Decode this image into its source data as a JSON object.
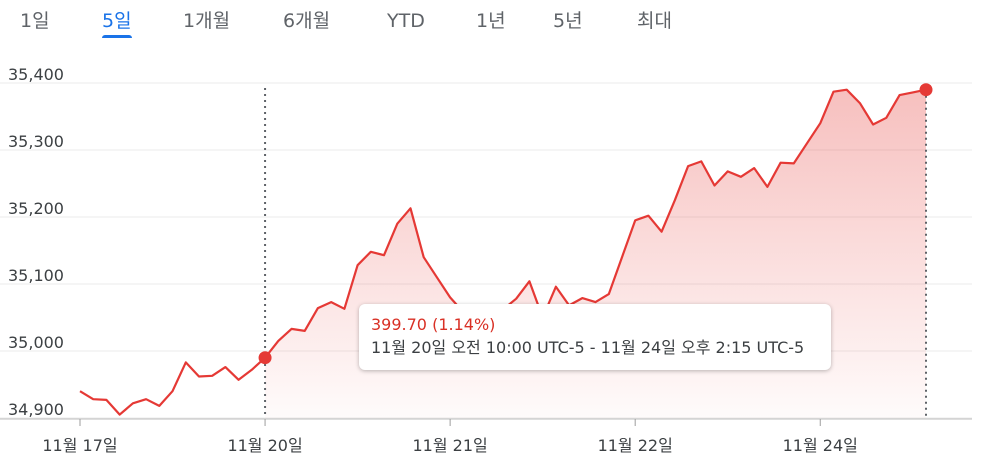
{
  "tabs": [
    {
      "label": "1일",
      "active": false
    },
    {
      "label": "5일",
      "active": true
    },
    {
      "label": "1개월",
      "active": false
    },
    {
      "label": "6개월",
      "active": false
    },
    {
      "label": "YTD",
      "active": false
    },
    {
      "label": "1년",
      "active": false
    },
    {
      "label": "5년",
      "active": false
    },
    {
      "label": "최대",
      "active": false
    }
  ],
  "tooltip": {
    "change": "399.70 (1.14%)",
    "range": "11월 20일 오전 10:00 UTC-5 - 11월 24일 오후 2:15 UTC-5"
  },
  "colors": {
    "line": "#e53935",
    "accent": "#1a73e8",
    "grid": "#ebebeb"
  },
  "chart_data": {
    "type": "area",
    "ylim": [
      34900,
      35400
    ],
    "yticks": [
      "35,400",
      "35,300",
      "35,200",
      "35,100",
      "35,000",
      "34,900"
    ],
    "yvalues": [
      35400,
      35300,
      35200,
      35100,
      35000,
      34900
    ],
    "xticks": [
      "11월 17일",
      "11월 20일",
      "11월 21일",
      "11월 22일",
      "11월 24일"
    ],
    "xtick_index": [
      0,
      14,
      28,
      42,
      56
    ],
    "selection": {
      "start_index": 14,
      "end_index": 64
    },
    "series": [
      {
        "values": [
          34940,
          34928,
          34927,
          34905,
          34922,
          34928,
          34918,
          34940,
          34983,
          34962,
          34963,
          34976,
          34957,
          34972,
          34990,
          35015,
          35033,
          35030,
          35064,
          35073,
          35063,
          35128,
          35148,
          35143,
          35190,
          35213,
          35140,
          35110,
          35080,
          35058,
          35050,
          35056,
          35062,
          35078,
          35104,
          35050,
          35096,
          35068,
          35079,
          35073,
          35085,
          35140,
          35195,
          35202,
          35178,
          35225,
          35276,
          35283,
          35247,
          35268,
          35260,
          35273,
          35245,
          35281,
          35280,
          35310,
          35340,
          35387,
          35390,
          35370,
          35338,
          35348,
          35382,
          35386,
          35390
        ]
      }
    ]
  }
}
